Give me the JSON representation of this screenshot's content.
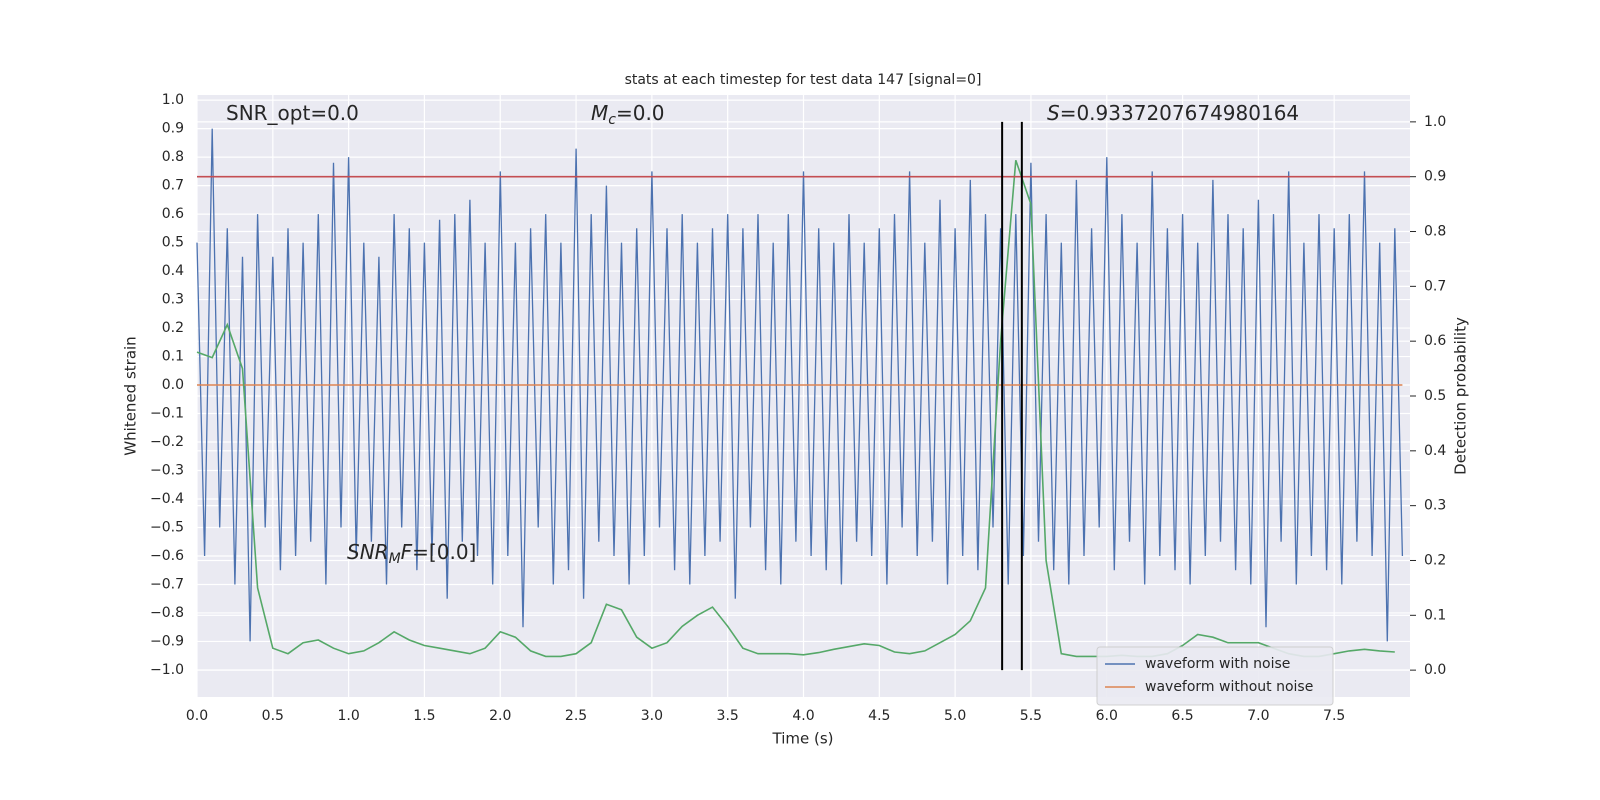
{
  "chart_data": {
    "type": "line",
    "title": "stats at each timestep for test data 147 [signal=0]",
    "xlabel": "Time (s)",
    "ylabel": "Whitened strain",
    "y2label": "Detection probability",
    "xlim": [
      0,
      8
    ],
    "ylim": [
      -1.095,
      1.018
    ],
    "y2lim": [
      -0.049,
      1.049
    ],
    "grid": true,
    "legend": "lower right",
    "xticks": [
      {
        "value": 0,
        "label": "0.0"
      },
      {
        "value": 0.5,
        "label": "0.5"
      },
      {
        "value": 1,
        "label": "1.0"
      },
      {
        "value": 1.5,
        "label": "1.5"
      },
      {
        "value": 2,
        "label": "2.0"
      },
      {
        "value": 2.5,
        "label": "2.5"
      },
      {
        "value": 3,
        "label": "3.0"
      },
      {
        "value": 3.5,
        "label": "3.5"
      },
      {
        "value": 4,
        "label": "4.0"
      },
      {
        "value": 4.5,
        "label": "4.5"
      },
      {
        "value": 5,
        "label": "5.0"
      },
      {
        "value": 5.5,
        "label": "5.5"
      },
      {
        "value": 6,
        "label": "6.0"
      },
      {
        "value": 6.5,
        "label": "6.5"
      },
      {
        "value": 7,
        "label": "7.0"
      },
      {
        "value": 7.5,
        "label": "7.5"
      }
    ],
    "yticks": [
      {
        "value": -1,
        "label": "−1.0"
      },
      {
        "value": -0.9,
        "label": "−0.9"
      },
      {
        "value": -0.8,
        "label": "−0.8"
      },
      {
        "value": -0.7,
        "label": "−0.7"
      },
      {
        "value": -0.6,
        "label": "−0.6"
      },
      {
        "value": -0.5,
        "label": "−0.5"
      },
      {
        "value": -0.4,
        "label": "−0.4"
      },
      {
        "value": -0.3,
        "label": "−0.3"
      },
      {
        "value": -0.2,
        "label": "−0.2"
      },
      {
        "value": -0.1,
        "label": "−0.1"
      },
      {
        "value": 0,
        "label": "0.0"
      },
      {
        "value": 0.1,
        "label": "0.1"
      },
      {
        "value": 0.2,
        "label": "0.2"
      },
      {
        "value": 0.3,
        "label": "0.3"
      },
      {
        "value": 0.4,
        "label": "0.4"
      },
      {
        "value": 0.5,
        "label": "0.5"
      },
      {
        "value": 0.6,
        "label": "0.6"
      },
      {
        "value": 0.7,
        "label": "0.7"
      },
      {
        "value": 0.8,
        "label": "0.8"
      },
      {
        "value": 0.9,
        "label": "0.9"
      },
      {
        "value": 1,
        "label": "1.0"
      }
    ],
    "y2ticks": [
      {
        "value": 0,
        "label": "0.0"
      },
      {
        "value": 0.1,
        "label": "0.1"
      },
      {
        "value": 0.2,
        "label": "0.2"
      },
      {
        "value": 0.3,
        "label": "0.3"
      },
      {
        "value": 0.4,
        "label": "0.4"
      },
      {
        "value": 0.5,
        "label": "0.5"
      },
      {
        "value": 0.6,
        "label": "0.6"
      },
      {
        "value": 0.7,
        "label": "0.7"
      },
      {
        "value": 0.8,
        "label": "0.8"
      },
      {
        "value": 0.9,
        "label": "0.9"
      },
      {
        "value": 1,
        "label": "1.0"
      }
    ],
    "series": [
      {
        "name": "waveform with noise",
        "color": "#4c72b0",
        "x": [
          0,
          0.05,
          0.1,
          0.15,
          0.2,
          0.25,
          0.3,
          0.35,
          0.4,
          0.45,
          0.5,
          0.55,
          0.6,
          0.65,
          0.7,
          0.75,
          0.8,
          0.85,
          0.9,
          0.95,
          1,
          1.05,
          1.1,
          1.15,
          1.2,
          1.25,
          1.3,
          1.35,
          1.4,
          1.45,
          1.5,
          1.55,
          1.6,
          1.65,
          1.7,
          1.75,
          1.8,
          1.85,
          1.9,
          1.95,
          2,
          2.05,
          2.1,
          2.15,
          2.2,
          2.25,
          2.3,
          2.35,
          2.4,
          2.45,
          2.5,
          2.55,
          2.6,
          2.65,
          2.7,
          2.75,
          2.8,
          2.85,
          2.9,
          2.95,
          3,
          3.05,
          3.1,
          3.15,
          3.2,
          3.25,
          3.3,
          3.35,
          3.4,
          3.45,
          3.5,
          3.55,
          3.6,
          3.65,
          3.7,
          3.75,
          3.8,
          3.85,
          3.9,
          3.95,
          4,
          4.05,
          4.1,
          4.15,
          4.2,
          4.25,
          4.3,
          4.35,
          4.4,
          4.45,
          4.5,
          4.55,
          4.6,
          4.65,
          4.7,
          4.75,
          4.8,
          4.85,
          4.9,
          4.95,
          5,
          5.05,
          5.1,
          5.15,
          5.2,
          5.25,
          5.3,
          5.35,
          5.4,
          5.45,
          5.5,
          5.55,
          5.6,
          5.65,
          5.7,
          5.75,
          5.8,
          5.85,
          5.9,
          5.95,
          6,
          6.05,
          6.1,
          6.15,
          6.2,
          6.25,
          6.3,
          6.35,
          6.4,
          6.45,
          6.5,
          6.55,
          6.6,
          6.65,
          6.7,
          6.75,
          6.8,
          6.85,
          6.9,
          6.95,
          7,
          7.05,
          7.1,
          7.15,
          7.2,
          7.25,
          7.3,
          7.35,
          7.4,
          7.45,
          7.5,
          7.55,
          7.6,
          7.65,
          7.7,
          7.75,
          7.8,
          7.85,
          7.9,
          7.95
        ],
        "values": [
          0.5,
          -0.6,
          0.9,
          -0.5,
          0.55,
          -0.7,
          0.45,
          -0.9,
          0.6,
          -0.5,
          0.45,
          -0.65,
          0.55,
          -0.6,
          0.5,
          -0.55,
          0.6,
          -0.7,
          0.78,
          -0.5,
          0.8,
          -0.6,
          0.5,
          -0.55,
          0.45,
          -0.7,
          0.6,
          -0.5,
          0.55,
          -0.65,
          0.5,
          -0.6,
          0.58,
          -0.75,
          0.6,
          -0.55,
          0.65,
          -0.6,
          0.5,
          -0.7,
          0.75,
          -0.6,
          0.5,
          -0.85,
          0.55,
          -0.5,
          0.6,
          -0.7,
          0.5,
          -0.65,
          0.83,
          -0.75,
          0.6,
          -0.55,
          0.7,
          -0.6,
          0.5,
          -0.7,
          0.55,
          -0.6,
          0.75,
          -0.5,
          0.55,
          -0.65,
          0.6,
          -0.7,
          0.5,
          -0.6,
          0.55,
          -0.55,
          0.6,
          -0.75,
          0.55,
          -0.5,
          0.6,
          -0.65,
          0.5,
          -0.7,
          0.6,
          -0.55,
          0.75,
          -0.6,
          0.55,
          -0.65,
          0.5,
          -0.7,
          0.6,
          -0.55,
          0.5,
          -0.6,
          0.55,
          -0.7,
          0.6,
          -0.5,
          0.75,
          -0.6,
          0.5,
          -0.55,
          0.65,
          -0.7,
          0.55,
          -0.6,
          0.72,
          -0.65,
          0.6,
          -0.5,
          0.55,
          -0.7,
          0.6,
          -0.6,
          0.78,
          -0.55,
          0.6,
          -0.65,
          0.5,
          -0.7,
          0.72,
          -0.6,
          0.55,
          -0.5,
          0.8,
          -0.65,
          0.6,
          -0.55,
          0.5,
          -0.7,
          0.75,
          -0.6,
          0.55,
          -0.65,
          0.6,
          -0.7,
          0.5,
          -0.6,
          0.72,
          -0.55,
          0.6,
          -0.65,
          0.55,
          -0.7,
          0.65,
          -0.85,
          0.6,
          -0.55,
          0.75,
          -0.7,
          0.5,
          -0.6,
          0.6,
          -0.65,
          0.55,
          -0.7,
          0.6,
          -0.55,
          0.75,
          -0.6,
          0.5,
          -0.9,
          0.55,
          -0.6
        ]
      },
      {
        "name": "waveform without noise",
        "color": "#dd8452",
        "x": [
          0,
          7.95
        ],
        "values": [
          0,
          0
        ]
      },
      {
        "color": "#55a868",
        "axis": "y2",
        "x": [
          0,
          0.1,
          0.2,
          0.3,
          0.4,
          0.5,
          0.6,
          0.7,
          0.8,
          0.9,
          1,
          1.1,
          1.2,
          1.3,
          1.4,
          1.5,
          1.6,
          1.7,
          1.8,
          1.9,
          2,
          2.1,
          2.2,
          2.3,
          2.4,
          2.5,
          2.6,
          2.7,
          2.8,
          2.9,
          3,
          3.1,
          3.2,
          3.3,
          3.4,
          3.5,
          3.6,
          3.7,
          3.8,
          3.9,
          4,
          4.1,
          4.2,
          4.3,
          4.4,
          4.5,
          4.6,
          4.7,
          4.8,
          4.9,
          5,
          5.1,
          5.2,
          5.3,
          5.4,
          5.5,
          5.6,
          5.7,
          5.8,
          5.9,
          6,
          6.1,
          6.2,
          6.3,
          6.4,
          6.5,
          6.6,
          6.7,
          6.8,
          6.9,
          7,
          7.1,
          7.2,
          7.3,
          7.4,
          7.5,
          7.6,
          7.7,
          7.8,
          7.9
        ],
        "values": [
          0.58,
          0.57,
          0.63,
          0.55,
          0.15,
          0.04,
          0.03,
          0.05,
          0.055,
          0.04,
          0.03,
          0.035,
          0.05,
          0.07,
          0.055,
          0.045,
          0.04,
          0.035,
          0.03,
          0.04,
          0.07,
          0.06,
          0.035,
          0.025,
          0.025,
          0.03,
          0.05,
          0.12,
          0.11,
          0.06,
          0.04,
          0.05,
          0.08,
          0.1,
          0.115,
          0.08,
          0.04,
          0.03,
          0.03,
          0.03,
          0.028,
          0.032,
          0.038,
          0.043,
          0.048,
          0.045,
          0.033,
          0.03,
          0.035,
          0.05,
          0.065,
          0.09,
          0.15,
          0.6,
          0.93,
          0.85,
          0.2,
          0.03,
          0.025,
          0.025,
          0.025,
          0.027,
          0.025,
          0.025,
          0.03,
          0.045,
          0.065,
          0.06,
          0.05,
          0.05,
          0.05,
          0.04,
          0.03,
          0.025,
          0.025,
          0.03,
          0.035,
          0.038,
          0.035,
          0.033
        ]
      }
    ],
    "threshold": {
      "value": 0.9,
      "axis": "y2",
      "color": "#c44e52"
    },
    "vlines": {
      "values": [
        5.31,
        5.44
      ],
      "color": "#000000"
    },
    "annotations": [
      {
        "parts": [
          {
            "text": "SNR_opt=0.0",
            "style": "normal"
          }
        ]
      },
      {
        "parts": [
          {
            "text": "M",
            "style": "italic"
          },
          {
            "text": "c",
            "style": "sub"
          },
          {
            "text": "=0.0",
            "style": "normal"
          }
        ]
      },
      {
        "parts": [
          {
            "text": "S",
            "style": "italic"
          },
          {
            "text": "=0.9337207674980164",
            "style": "normal"
          }
        ]
      },
      {
        "parts": [
          {
            "text": "SNR",
            "style": "italic"
          },
          {
            "text": "M",
            "style": "sub"
          },
          {
            "text": "F",
            "style": "italic"
          },
          {
            "text": "=[0.0]",
            "style": "normal"
          }
        ]
      }
    ]
  }
}
